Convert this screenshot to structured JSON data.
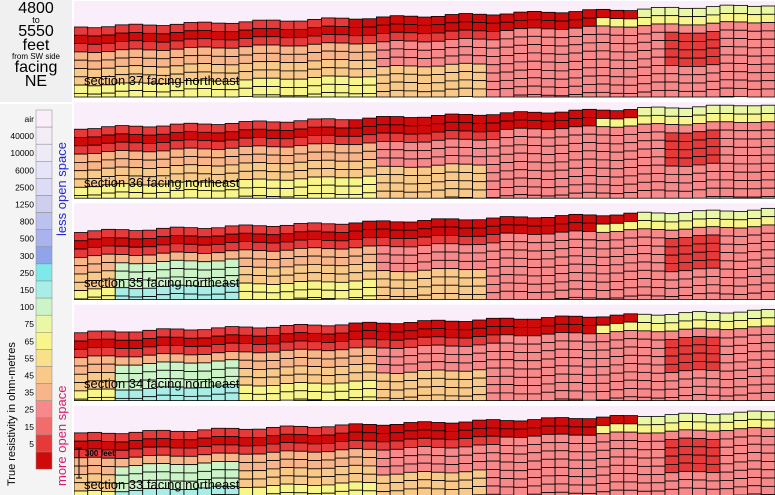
{
  "header": {
    "range_start": "4800",
    "range_to": "to",
    "range_end": "5550",
    "units": "feet",
    "from": "from SW side",
    "facing_label": "facing",
    "direction": "NE"
  },
  "legend": {
    "axis_title": "True resistivity in ohm-metres",
    "less_label": "less open space",
    "more_label": "more open space",
    "entries": [
      {
        "label": "air",
        "color": "#fbeefb"
      },
      {
        "label": "40000",
        "color": "#f4ecf6"
      },
      {
        "label": "10000",
        "color": "#eeeaf6"
      },
      {
        "label": "6000",
        "color": "#e6e4f8"
      },
      {
        "label": "2500",
        "color": "#dcdcf6"
      },
      {
        "label": "1250",
        "color": "#ceceef"
      },
      {
        "label": "800",
        "color": "#bcc2f0"
      },
      {
        "label": "500",
        "color": "#a9b3ee"
      },
      {
        "label": "300",
        "color": "#8fa4ea"
      },
      {
        "label": "250",
        "color": "#7fe8ea"
      },
      {
        "label": "150",
        "color": "#a9eee6"
      },
      {
        "label": "100",
        "color": "#cdf4c8"
      },
      {
        "label": "75",
        "color": "#eaf8a6"
      },
      {
        "label": "65",
        "color": "#f8f58a"
      },
      {
        "label": "55",
        "color": "#f9e08a"
      },
      {
        "label": "45",
        "color": "#f9c98a"
      },
      {
        "label": "35",
        "color": "#f9b58a"
      },
      {
        "label": "25",
        "color": "#f7898a"
      },
      {
        "label": "15",
        "color": "#f26c6c"
      },
      {
        "label": "5",
        "color": "#e63a3a"
      },
      {
        "label": "",
        "color": "#cf0a0a"
      }
    ]
  },
  "scale_bar": {
    "label": "300 feet"
  },
  "sections": [
    {
      "label": "section 37 facing northeast"
    },
    {
      "label": "section 36 facing northeast"
    },
    {
      "label": "section 35 facing northeast"
    },
    {
      "label": "section 34 facing northeast"
    },
    {
      "label": "section 33 facing northeast"
    }
  ],
  "colors": {
    "air": "#fbeefb",
    "deep_red": "#cf0a0a",
    "red": "#e63a3a",
    "pink": "#f7898a",
    "salmon": "#f9b58a",
    "orange": "#f9c98a",
    "yellow": "#f8f58a",
    "lime": "#eaf8a6",
    "green": "#cdf4c8",
    "cyan": "#a9eee6",
    "blue": "#8fa4ea"
  }
}
